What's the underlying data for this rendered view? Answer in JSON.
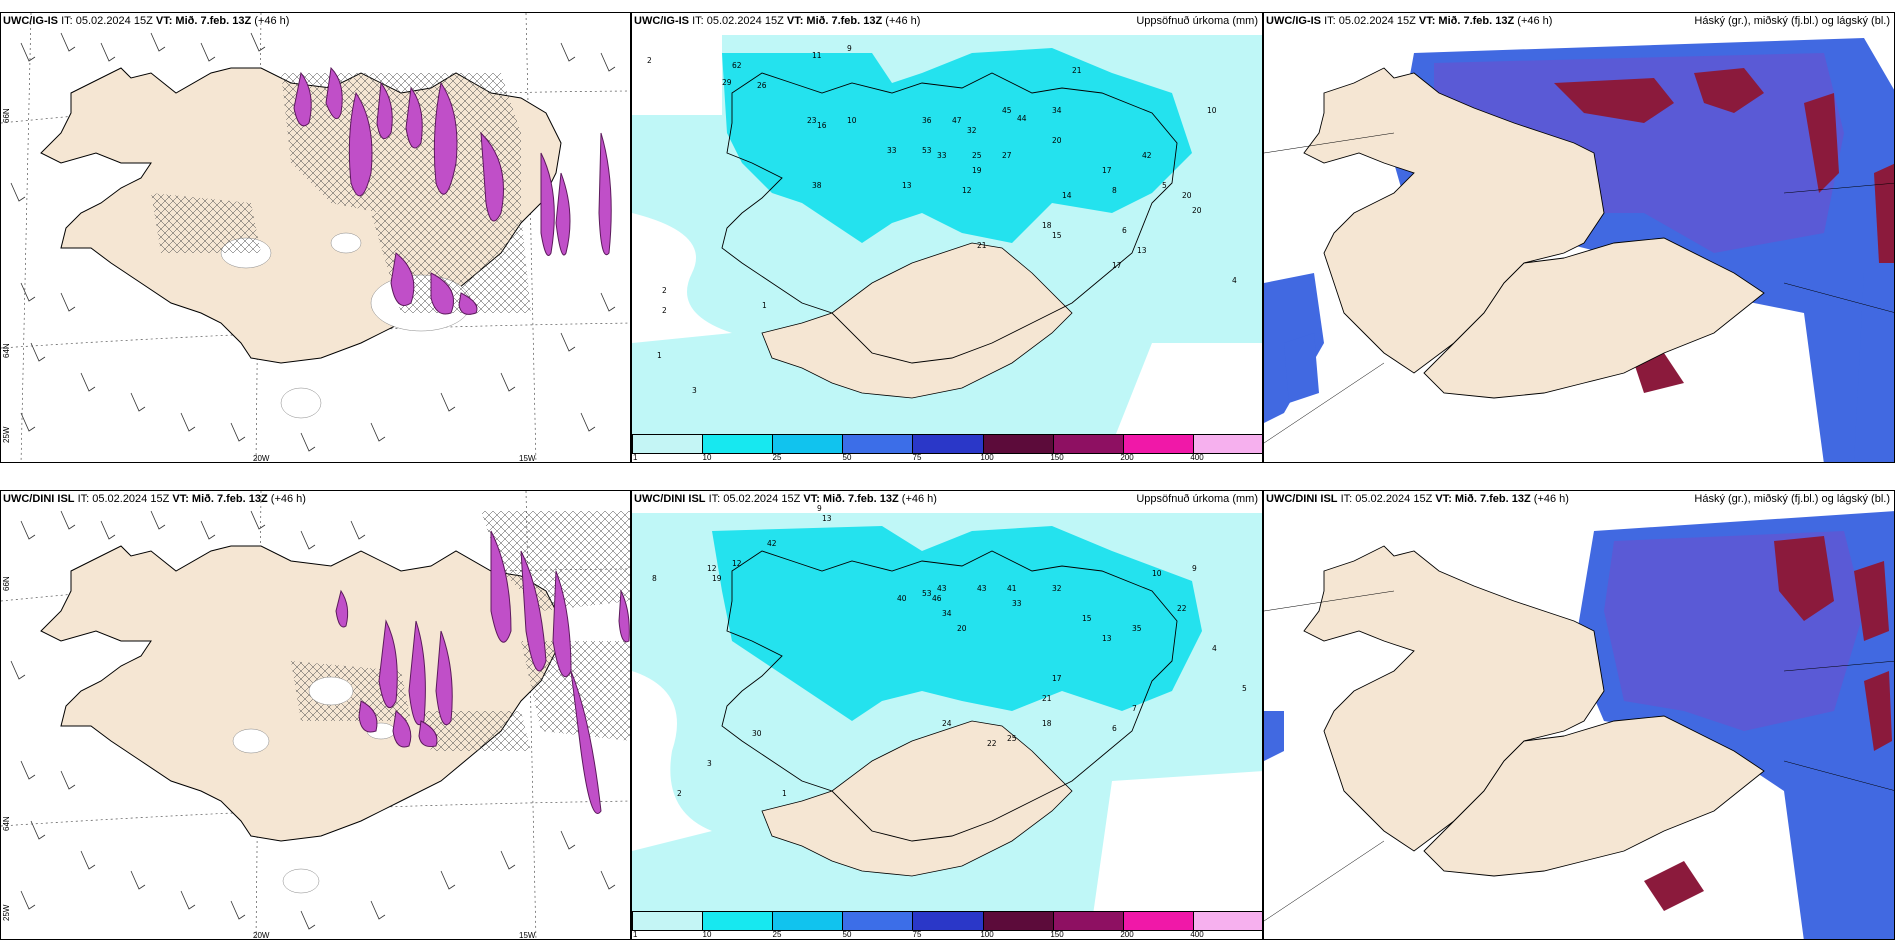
{
  "panels": {
    "r1c1": {
      "model": "UWC/IG-IS",
      "it": "IT: 05.02.2024 15Z",
      "vt_label": "VT:",
      "vt": "Mið. 7.feb. 13Z",
      "lead": "(+46 h)",
      "right": ""
    },
    "r1c2": {
      "model": "UWC/IG-IS",
      "it": "IT: 05.02.2024 15Z",
      "vt_label": "VT:",
      "vt": "Mið. 7.feb. 13Z",
      "lead": "(+46 h)",
      "right": "Uppsöfnuð úrkoma (mm)"
    },
    "r1c3": {
      "model": "UWC/IG-IS",
      "it": "IT: 05.02.2024 15Z",
      "vt_label": "VT:",
      "vt": "Mið. 7.feb. 13Z",
      "lead": "(+46 h)",
      "right": "Háský (gr.), miðský (fj.bl.) og lágský (bl.)"
    },
    "r2c1": {
      "model": "UWC/DINI ISL",
      "it": "IT: 05.02.2024 15Z",
      "vt_label": "VT:",
      "vt": "Mið. 7.feb. 13Z",
      "lead": "(+46 h)",
      "right": ""
    },
    "r2c2": {
      "model": "UWC/DINI ISL",
      "it": "IT: 05.02.2024 15Z",
      "vt_label": "VT:",
      "vt": "Mið. 7.feb. 13Z",
      "lead": "(+46 h)",
      "right": "Uppsöfnuð úrkoma (mm)"
    },
    "r2c3": {
      "model": "UWC/DINI ISL",
      "it": "IT: 05.02.2024 15Z",
      "vt_label": "VT:",
      "vt": "Mið. 7.feb. 13Z",
      "lead": "(+46 h)",
      "right": "Háský (gr.), miðský (fj.bl.) og lágský (bl.)"
    }
  },
  "axes": {
    "lon": [
      "20W",
      "15W"
    ],
    "lat": [
      "66N",
      "64N",
      "25W"
    ]
  },
  "colorbar": {
    "ticks": [
      "1",
      "10",
      "25",
      "50",
      "75",
      "100",
      "150",
      "200",
      "400"
    ],
    "colors": [
      "#c4f5f5",
      "#17e8f0",
      "#11c3ee",
      "#3c6ee8",
      "#2a37c8",
      "#5c0b3a",
      "#8e1062",
      "#f018a8",
      "#f6b0ee"
    ]
  },
  "colors": {
    "land": "#f5e6d3",
    "precip_light": "#bff7f7",
    "precip_mid": "#24e2ee",
    "cloud_high": "#5555cc",
    "cloud_mid": "#4169e1",
    "cloud_dark": "#8b1a3c",
    "snow_purple": "#c04fc8"
  },
  "precip_labels_r1": [
    "11",
    "9",
    "2",
    "62",
    "29",
    "26",
    "36",
    "47",
    "32",
    "45",
    "44",
    "21",
    "34",
    "23",
    "16",
    "10",
    "38",
    "33",
    "53",
    "33",
    "25",
    "27",
    "20",
    "42",
    "17",
    "13",
    "19",
    "12",
    "8",
    "6",
    "18",
    "14",
    "15",
    "21",
    "13",
    "17",
    "6",
    "5",
    "20",
    "20",
    "10",
    "1",
    "2",
    "3",
    "4",
    "2",
    "1"
  ],
  "precip_labels_r2": [
    "9",
    "13",
    "12",
    "9",
    "42",
    "40",
    "53",
    "43",
    "46",
    "43",
    "41",
    "33",
    "32",
    "20",
    "34",
    "35",
    "22",
    "24",
    "22",
    "25",
    "21",
    "17",
    "18",
    "30",
    "15",
    "13",
    "10",
    "9",
    "7",
    "6",
    "5",
    "4",
    "3",
    "2",
    "1"
  ]
}
